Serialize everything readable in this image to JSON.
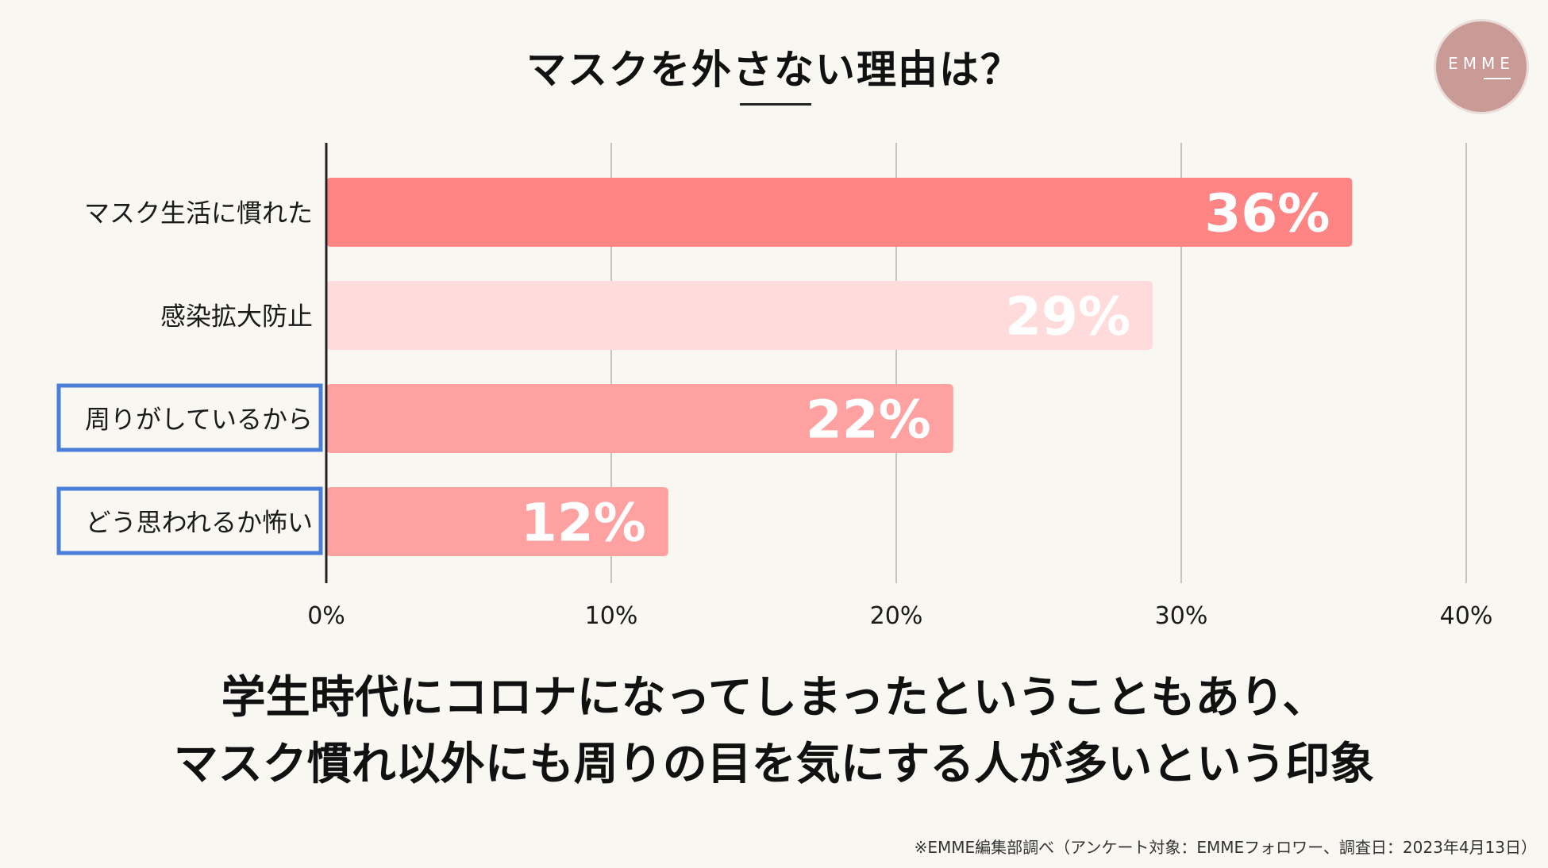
{
  "title": "マスクを外さない理由は？",
  "logo_text": "EMME",
  "conclusion": {
    "line1": "学生時代にコロナになってしまったということもあり、",
    "line2": "マスク慣れ以外にも周りの目を気にする人が多いという印象"
  },
  "footnote": "※EMME編集部調べ（アンケート対象：EMMEフォロワー、調査日：2023年4月13日）",
  "chart_data": {
    "type": "bar",
    "orientation": "horizontal",
    "categories": [
      "マスク生活に慣れた",
      "感染拡大防止",
      "周りがしているから",
      "どう思われるか怖い"
    ],
    "values": [
      36,
      29,
      22,
      12
    ],
    "value_labels": [
      "36%",
      "29%",
      "22%",
      "12%"
    ],
    "highlighted": [
      false,
      false,
      true,
      true
    ],
    "bar_colors": [
      "#ff8585",
      "#ffdcdb",
      "#ffa1a1",
      "#ffa1a1"
    ],
    "highlight_color": "#4a7fd9",
    "xlim": [
      0,
      40
    ],
    "xticks": [
      0,
      10,
      20,
      30,
      40
    ],
    "xtick_labels": [
      "0%",
      "10%",
      "20%",
      "30%",
      "40%"
    ],
    "grid": true
  }
}
